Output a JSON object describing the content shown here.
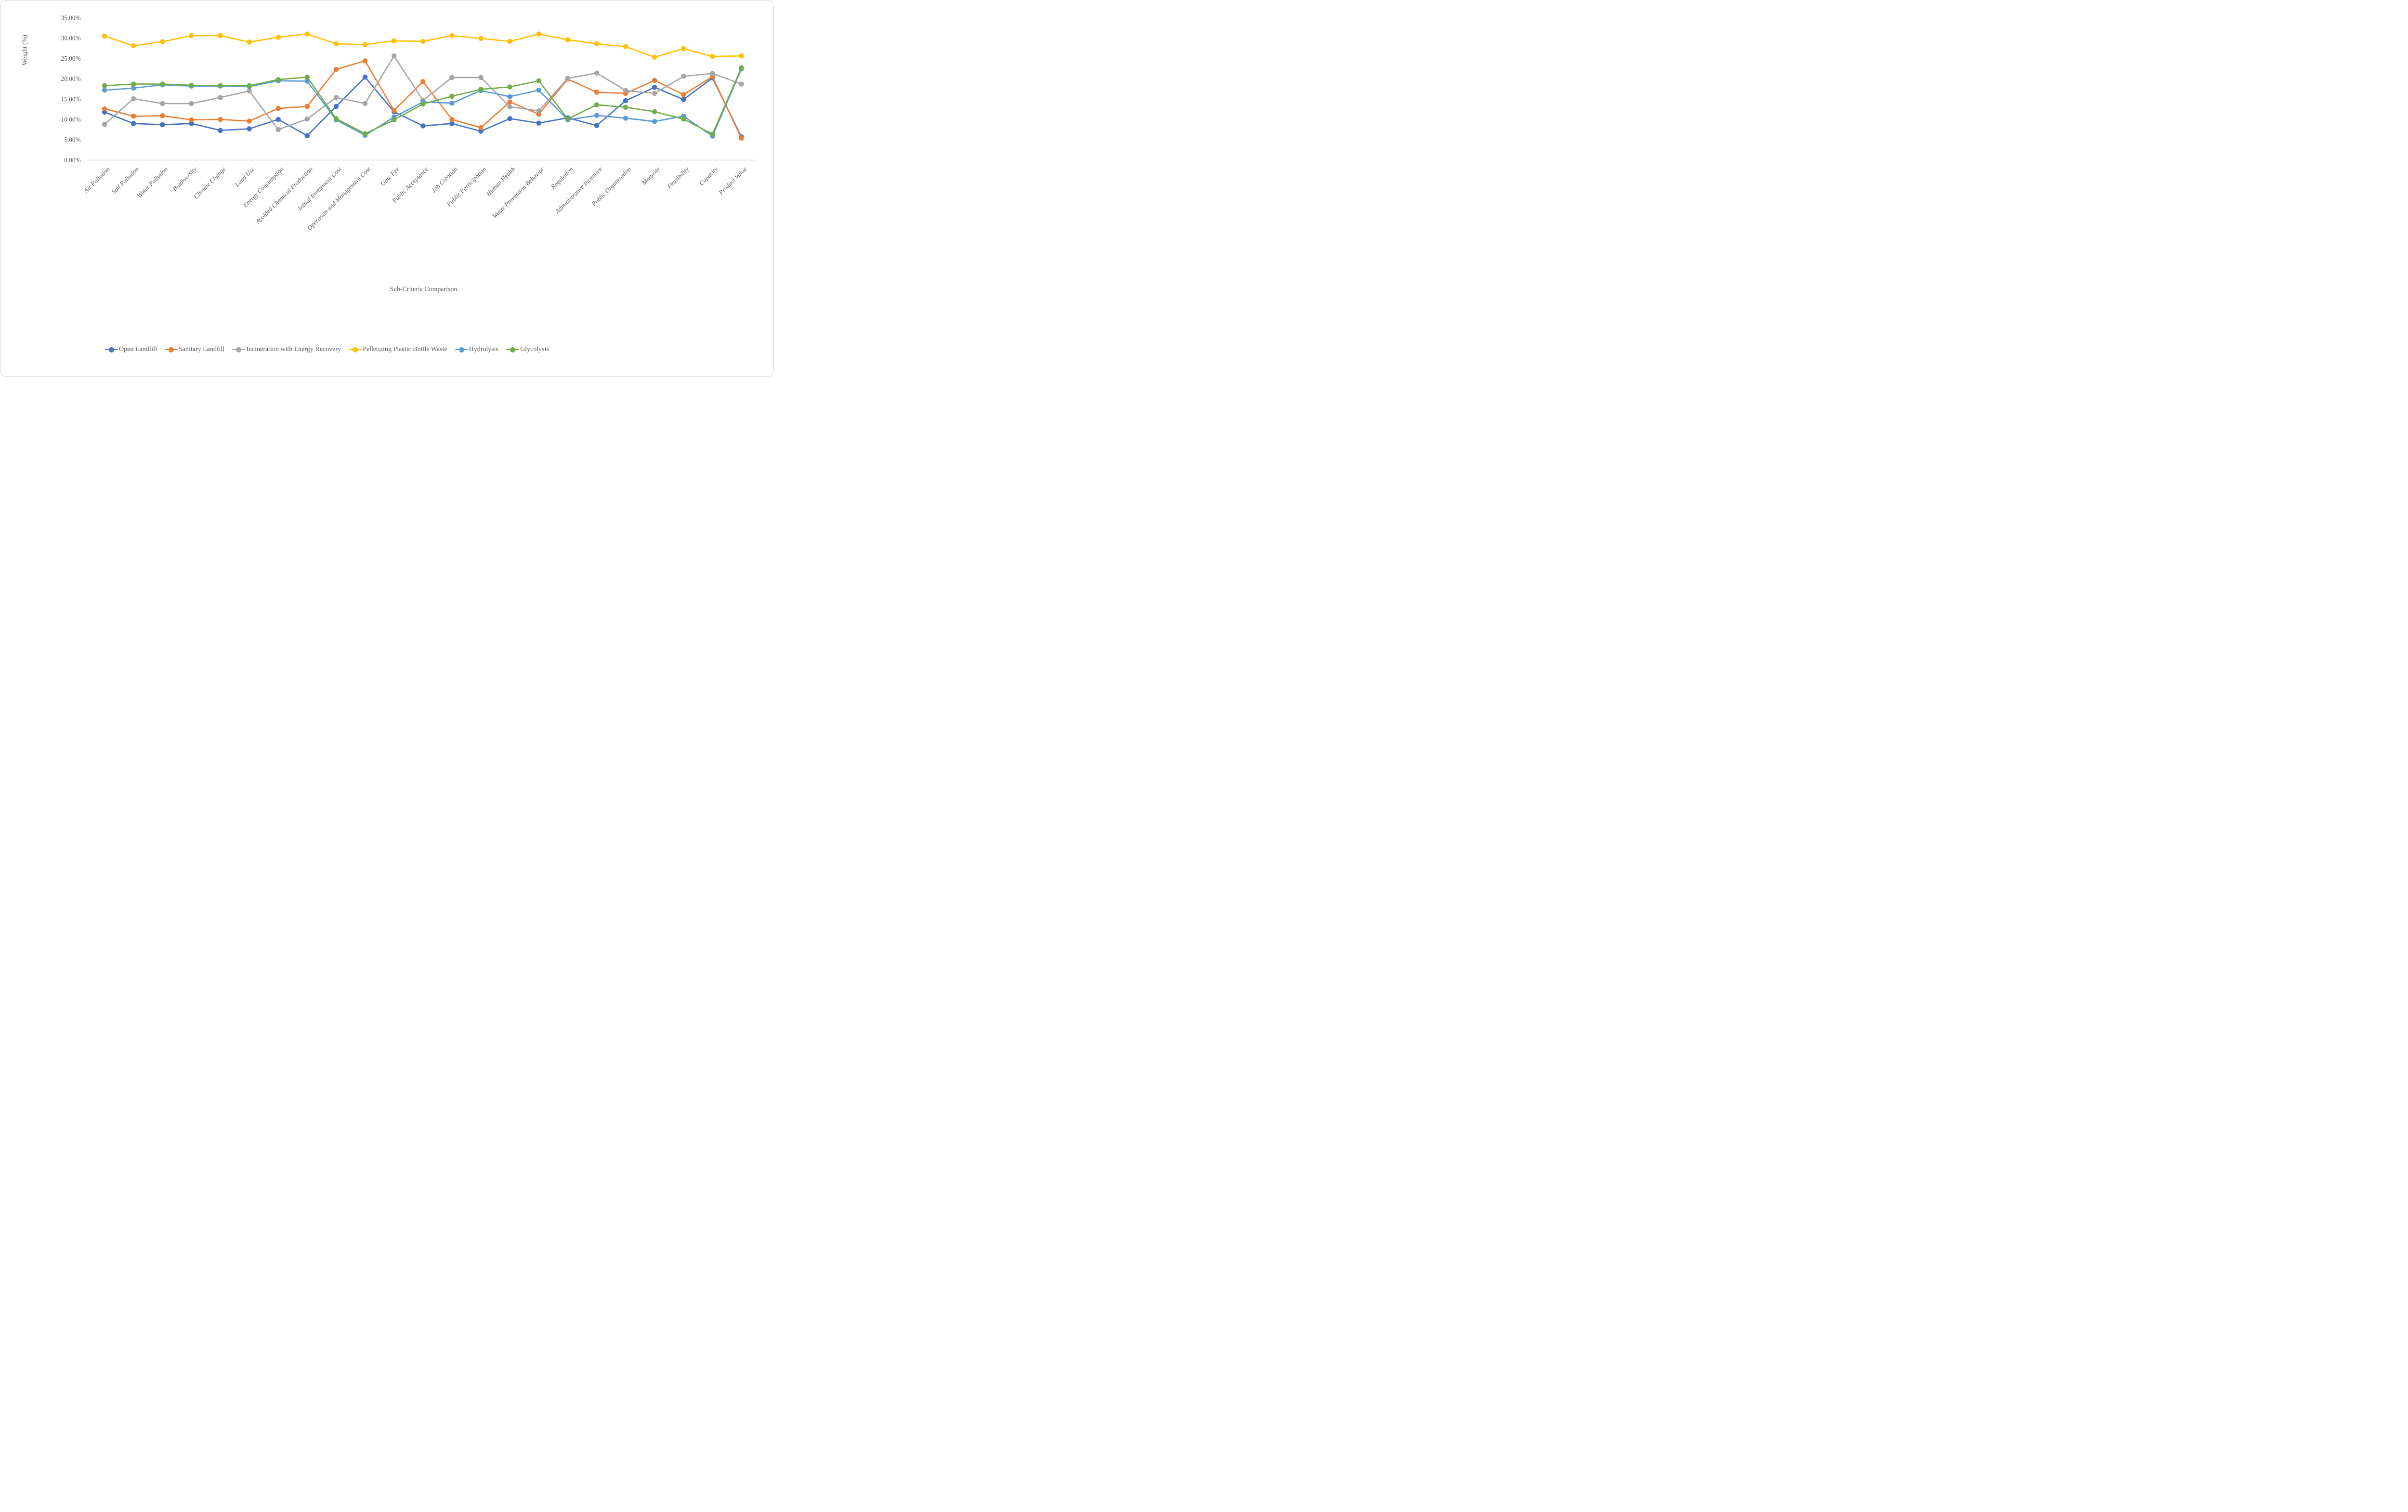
{
  "chart_data": {
    "type": "line",
    "title": "",
    "xlabel": "Sub-Criteria Comparison",
    "ylabel": "Weight (%)",
    "ylim": [
      0,
      35
    ],
    "ytick_step": 5,
    "yticks": [
      "0.00%",
      "5.00%",
      "10.00%",
      "15.00%",
      "20.00%",
      "25.00%",
      "30.00%",
      "35.00%"
    ],
    "grid": false,
    "legend_position": "bottom",
    "categories": [
      "Air Pollution",
      "Soil Pollution",
      "Water Pollution",
      "Biodiversity",
      "Climate Change",
      "Land Use",
      "Energy Consumption",
      "Avoided Chemical Production",
      "Initial Investment Cost",
      "Operation and Management Cost",
      "Gate Fee",
      "Public Acceptance",
      "Job Creation",
      "Public Participation",
      "Human Health",
      "Waste Prevention Behavior",
      "Regulation",
      "Administrative Incentive",
      "Public Organization",
      "Maturity",
      "Feasibility",
      "Capacity",
      "Product Value"
    ],
    "series": [
      {
        "name": "Open Landfill",
        "color": "#4472C4",
        "values": [
          11.8,
          9.0,
          8.7,
          9.0,
          7.3,
          7.7,
          10.0,
          6.0,
          13.2,
          20.4,
          11.9,
          8.4,
          9.0,
          7.1,
          10.2,
          9.1,
          10.4,
          8.5,
          14.6,
          17.9,
          14.9,
          20.2,
          5.7
        ]
      },
      {
        "name": "Sanitary Landfill",
        "color": "#ED7D31",
        "values": [
          12.6,
          10.8,
          10.9,
          9.9,
          10.0,
          9.6,
          12.7,
          13.2,
          22.3,
          24.4,
          12.2,
          19.3,
          10.0,
          8.0,
          14.3,
          11.3,
          19.9,
          16.7,
          16.4,
          19.6,
          16.1,
          20.5,
          5.4
        ]
      },
      {
        "name": "Incineration with Energy Recovery",
        "color": "#A5A5A5",
        "values": [
          8.8,
          15.1,
          13.9,
          13.9,
          15.4,
          17.0,
          7.5,
          10.1,
          15.4,
          13.9,
          25.6,
          14.7,
          20.3,
          20.3,
          13.1,
          12.1,
          20.1,
          21.4,
          17.1,
          16.4,
          20.6,
          21.3,
          18.7
        ]
      },
      {
        "name": "Pelletizing Plastic Bottle Waste",
        "color": "#FFC000",
        "values": [
          30.5,
          28.1,
          29.1,
          30.6,
          30.6,
          29.0,
          30.2,
          31.0,
          28.6,
          28.4,
          29.3,
          29.2,
          30.6,
          29.9,
          29.2,
          31.0,
          29.6,
          28.6,
          27.9,
          25.3,
          27.4,
          25.5,
          25.6
        ]
      },
      {
        "name": "Hydrolysis",
        "color": "#5B9BD5",
        "values": [
          17.2,
          17.7,
          18.5,
          18.2,
          18.2,
          18.1,
          19.5,
          19.4,
          9.9,
          6.1,
          10.6,
          14.3,
          14.0,
          17.1,
          15.6,
          17.2,
          9.9,
          11.0,
          10.3,
          9.5,
          10.8,
          5.9,
          22.4
        ]
      },
      {
        "name": "Glycolysis",
        "color": "#70AD47",
        "values": [
          18.3,
          18.7,
          18.7,
          18.4,
          18.3,
          18.3,
          19.8,
          20.4,
          10.2,
          6.5,
          9.9,
          13.8,
          15.7,
          17.4,
          18.0,
          19.5,
          10.1,
          13.6,
          13.0,
          11.9,
          10.1,
          6.4,
          22.7
        ]
      }
    ],
    "style": {
      "text_color": "#595959",
      "axis_color": "#D9D9D9",
      "background": "#FFFFFF"
    }
  }
}
